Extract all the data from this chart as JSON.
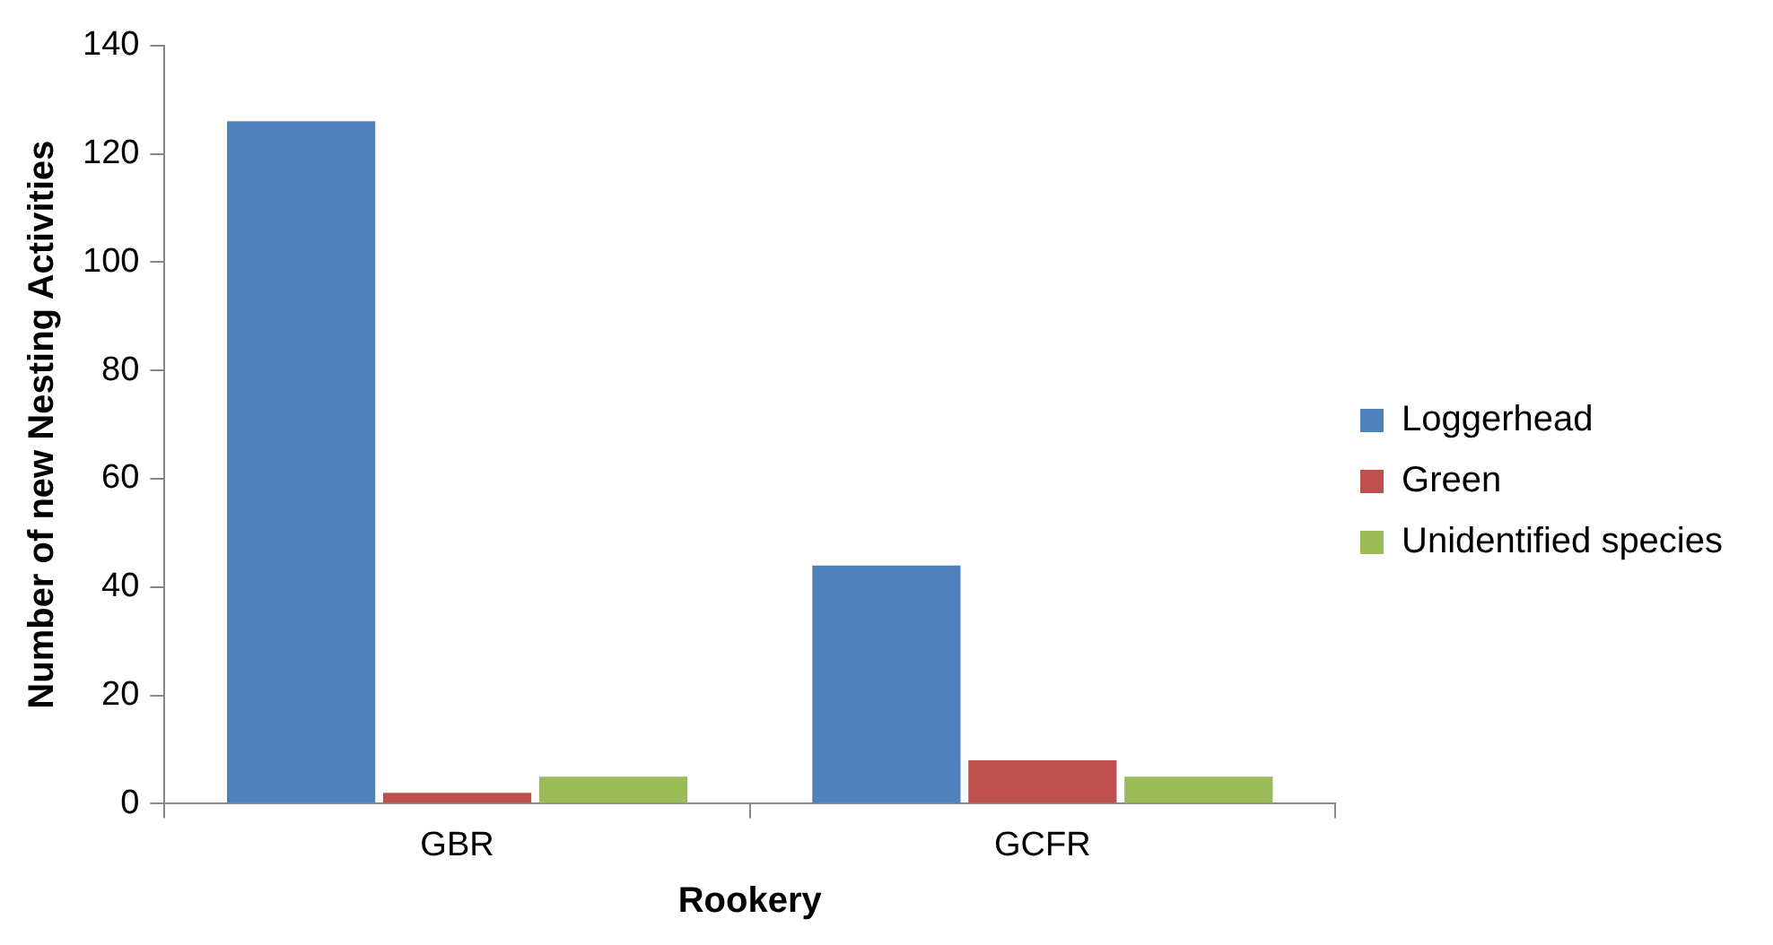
{
  "chart_data": {
    "type": "bar",
    "xlabel": "Rookery",
    "ylabel": "Number of new Nesting Activities",
    "categories": [
      "GBR",
      "GCFR"
    ],
    "series": [
      {
        "name": "Loggerhead",
        "color": "#4f81bd",
        "values": [
          126,
          44
        ]
      },
      {
        "name": "Green",
        "color": "#c0504d",
        "values": [
          2,
          8
        ]
      },
      {
        "name": "Unidentified species",
        "color": "#9bbb59",
        "values": [
          5,
          5
        ]
      }
    ],
    "ylim": [
      0,
      140
    ],
    "yticks": [
      0,
      20,
      40,
      60,
      80,
      100,
      120,
      140
    ],
    "grid": false,
    "legend": "right"
  }
}
